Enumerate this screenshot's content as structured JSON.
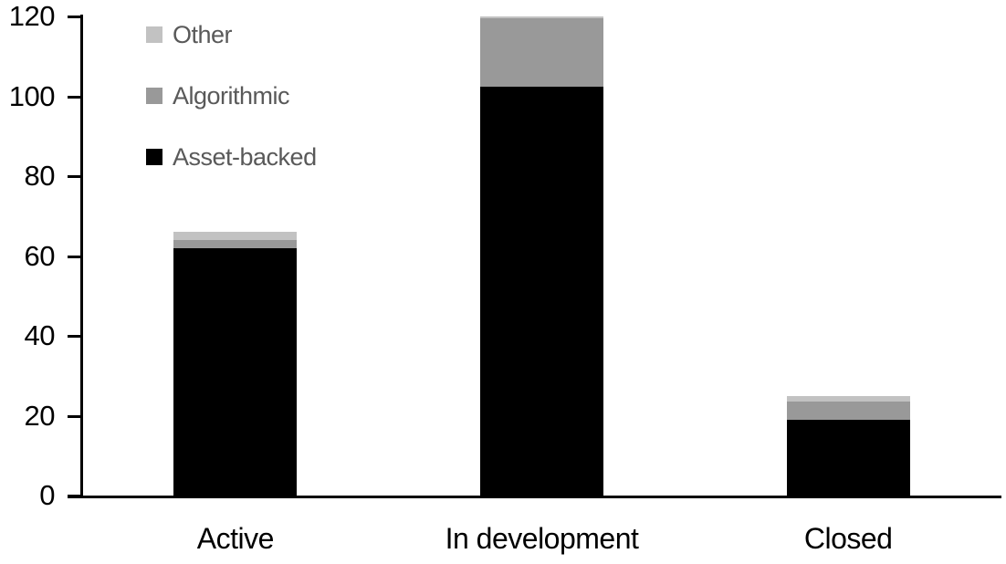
{
  "chart_data": {
    "type": "bar",
    "stacked": true,
    "title": "",
    "xlabel": "",
    "ylabel": "",
    "categories": [
      "Active",
      "In development",
      "Closed"
    ],
    "series": [
      {
        "name": "Asset-backed",
        "color": "#000000",
        "values": [
          62,
          102.5,
          19
        ]
      },
      {
        "name": "Algorithmic",
        "color": "#999999",
        "values": [
          2,
          17,
          4.5
        ]
      },
      {
        "name": "Other",
        "color": "#c2c2c2",
        "values": [
          2,
          0.5,
          1.5
        ]
      }
    ],
    "totals": [
      66,
      120,
      25
    ],
    "ylim": [
      0,
      120
    ],
    "yticks": [
      0,
      20,
      40,
      60,
      80,
      100,
      120
    ],
    "grid": false,
    "legend_position": "top-left",
    "legend_order": [
      "Other",
      "Algorithmic",
      "Asset-backed"
    ]
  },
  "colors": {
    "background": "#ffffff",
    "axis": "#000000",
    "tick_label_text": "#000000",
    "category_label_text": "#000000",
    "legend_text": "#595959"
  }
}
